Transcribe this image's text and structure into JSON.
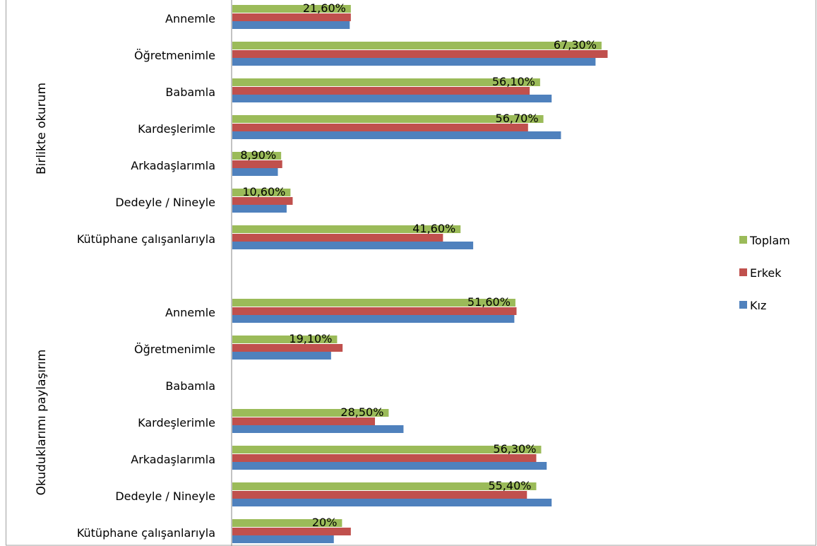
{
  "chart_data": {
    "type": "bar",
    "orientation": "horizontal",
    "groups": [
      {
        "label": "Birlikte okurum",
        "categories": [
          "Annemle",
          "Öğretmenimle",
          "Babamla",
          "Kardeşlerimle",
          "Arkadaşlarımla",
          "Dedeyle / Nineyle",
          "Kütüphane çalışanlarıyla"
        ],
        "series": [
          {
            "name": "Toplam",
            "values": [
              21.6,
              67.3,
              56.1,
              56.7,
              8.9,
              10.6,
              41.6
            ]
          },
          {
            "name": "Erkek",
            "values": [
              21.6,
              68.4,
              54.2,
              53.9,
              9.1,
              11.0,
              38.4
            ]
          },
          {
            "name": "Kız",
            "values": [
              21.4,
              66.2,
              58.2,
              59.9,
              8.3,
              9.9,
              43.9
            ]
          }
        ],
        "data_labels": [
          "21,60%",
          "67,30%",
          "56,10%",
          "56,70%",
          "8,90%",
          "10,60%",
          "41,60%"
        ]
      },
      {
        "label": "Okuduklarımı paylaşırım",
        "categories": [
          "Annemle",
          "Öğretmenimle",
          "Babamla",
          "Kardeşlerimle",
          "Arkadaşlarımla",
          "Dedeyle / Nineyle",
          "Kütüphane çalışanlarıyla"
        ],
        "series": [
          {
            "name": "Toplam",
            "values": [
              51.6,
              19.1,
              null,
              28.5,
              56.3,
              55.4,
              20.0
            ]
          },
          {
            "name": "Erkek",
            "values": [
              51.8,
              20.1,
              null,
              26.0,
              55.4,
              53.7,
              21.6
            ]
          },
          {
            "name": "Kız",
            "values": [
              51.4,
              18.0,
              null,
              31.2,
              57.3,
              58.2,
              18.5
            ]
          }
        ],
        "data_labels": [
          "51,60%",
          "19,10%",
          "",
          "28,50%",
          "56,30%",
          "55,40%",
          "20%"
        ]
      }
    ],
    "legend": [
      "Toplam",
      "Erkek",
      "Kız"
    ],
    "legend_position": "right",
    "xlim": [
      0,
      100
    ],
    "grid": false,
    "colors": {
      "Toplam": "#9BBB59",
      "Erkek": "#C0504D",
      "Kız": "#4F81BD"
    }
  }
}
